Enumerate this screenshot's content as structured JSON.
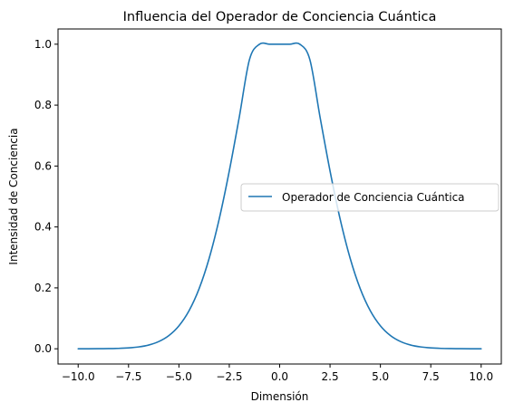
{
  "chart_data": {
    "type": "line",
    "title": "Influencia del Operador de Conciencia Cuántica",
    "xlabel": "Dimensión",
    "ylabel": "Intensidad de Conciencia",
    "xlim": [
      -11.0,
      11.0
    ],
    "ylim": [
      -0.05,
      1.05
    ],
    "x_ticks": [
      -10.0,
      -7.5,
      -5.0,
      -2.5,
      0.0,
      2.5,
      5.0,
      7.5,
      10.0
    ],
    "x_tick_labels": [
      "−10.0",
      "−7.5",
      "−5.0",
      "−2.5",
      "0.0",
      "2.5",
      "5.0",
      "7.5",
      "10.0"
    ],
    "y_ticks": [
      0.0,
      0.2,
      0.4,
      0.6,
      0.8,
      1.0
    ],
    "y_tick_labels": [
      "0.0",
      "0.2",
      "0.4",
      "0.6",
      "0.8",
      "1.0"
    ],
    "grid": false,
    "legend_position": "center-right",
    "series": [
      {
        "name": "Operador de Conciencia Cuántica",
        "color": "#1f77b4",
        "x": [
          -10,
          -9.5,
          -9,
          -8.5,
          -8,
          -7.5,
          -7,
          -6.5,
          -6,
          -5.5,
          -5,
          -4.5,
          -4,
          -3.5,
          -3,
          -2.5,
          -2,
          -1.5,
          -1,
          -0.5,
          0,
          0.5,
          1,
          1.5,
          2,
          2.5,
          3,
          3.5,
          4,
          4.5,
          5,
          5.5,
          6,
          6.5,
          7,
          7.5,
          8,
          8.5,
          9,
          9.5,
          10
        ],
        "y": [
          0.0,
          0.0001,
          0.0002,
          0.0006,
          0.0013,
          0.0029,
          0.0061,
          0.0123,
          0.0237,
          0.0432,
          0.0752,
          0.1246,
          0.1969,
          0.2967,
          0.4263,
          0.5838,
          0.7623,
          0.9491,
          1.0,
          1.0,
          1.0,
          1.0,
          1.0,
          0.9491,
          0.7623,
          0.5838,
          0.4263,
          0.2967,
          0.1969,
          0.1246,
          0.0752,
          0.0432,
          0.0237,
          0.0123,
          0.0061,
          0.0029,
          0.0013,
          0.0006,
          0.0002,
          0.0001,
          0.0
        ]
      }
    ]
  }
}
